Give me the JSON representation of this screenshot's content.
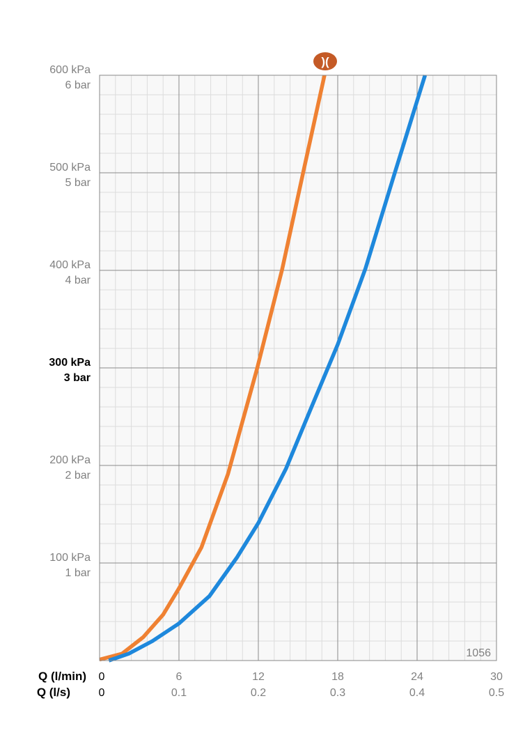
{
  "chart_data": {
    "type": "line",
    "annotation": "1056",
    "x_label": "Q (l/min)",
    "x2_label": "Q (l/s)",
    "xlim": [
      0,
      30
    ],
    "xticks": [
      0,
      6,
      12,
      18,
      24,
      30
    ],
    "x2ticks": [
      {
        "value": 0,
        "label": "0"
      },
      {
        "value": 6,
        "label": "0.1"
      },
      {
        "value": 12,
        "label": "0.2"
      },
      {
        "value": 18,
        "label": "0.3"
      },
      {
        "value": 24,
        "label": "0.4"
      },
      {
        "value": 30,
        "label": "0.5"
      }
    ],
    "ylim": [
      0,
      600
    ],
    "yticks": [
      {
        "value": 100,
        "label": "100 kPa"
      },
      {
        "value": 200,
        "label": "200 kPa"
      },
      {
        "value": 300,
        "label": "300 kPa"
      },
      {
        "value": 400,
        "label": "400 kPa"
      },
      {
        "value": 500,
        "label": "500 kPa"
      },
      {
        "value": 600,
        "label": "600 kPa"
      }
    ],
    "ybar_ticks": [
      {
        "value": 100,
        "label": "1 bar"
      },
      {
        "value": 200,
        "label": "2 bar"
      },
      {
        "value": 300,
        "label": "3 bar"
      },
      {
        "value": 400,
        "label": "4 bar"
      },
      {
        "value": 500,
        "label": "5 bar"
      },
      {
        "value": 600,
        "label": "6 bar"
      }
    ],
    "emphasized_ytick": 300,
    "grid": true,
    "minor_x_step": 1.2,
    "minor_y_step": 20,
    "series": [
      {
        "color": "#ef8132",
        "x": [
          0,
          1.7,
          3.3,
          4.8,
          6,
          7.7,
          9.7,
          11.9,
          13.8,
          15.4,
          17
        ],
        "values": [
          1,
          7,
          24,
          47,
          74,
          116,
          191,
          299,
          401,
          501,
          600
        ]
      },
      {
        "color": "#1e88dc",
        "x": [
          0.7,
          2.2,
          4,
          6,
          8.3,
          10.4,
          12,
          14.1,
          15.9,
          18,
          20.1,
          22.2,
          24.6
        ],
        "values": [
          0,
          7,
          20,
          38,
          66,
          106,
          141,
          197,
          256,
          324,
          402,
          495,
          600
        ]
      }
    ]
  }
}
